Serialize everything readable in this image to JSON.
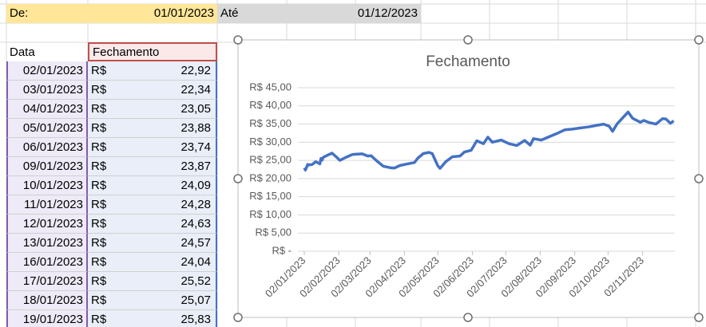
{
  "filter": {
    "from_label": "De:",
    "from_value": "01/01/2023",
    "to_label": "Até",
    "to_value": "01/12/2023"
  },
  "table": {
    "columns": [
      "Data",
      "Fechamento"
    ],
    "rows": [
      [
        "02/01/2023",
        "R$",
        "22,92"
      ],
      [
        "03/01/2023",
        "R$",
        "22,34"
      ],
      [
        "04/01/2023",
        "R$",
        "23,05"
      ],
      [
        "05/01/2023",
        "R$",
        "23,88"
      ],
      [
        "06/01/2023",
        "R$",
        "23,74"
      ],
      [
        "09/01/2023",
        "R$",
        "23,87"
      ],
      [
        "10/01/2023",
        "R$",
        "24,09"
      ],
      [
        "11/01/2023",
        "R$",
        "24,28"
      ],
      [
        "12/01/2023",
        "R$",
        "24,63"
      ],
      [
        "13/01/2023",
        "R$",
        "24,57"
      ],
      [
        "16/01/2023",
        "R$",
        "24,04"
      ],
      [
        "17/01/2023",
        "R$",
        "25,52"
      ],
      [
        "18/01/2023",
        "R$",
        "25,07"
      ],
      [
        "19/01/2023",
        "R$",
        "25,83"
      ]
    ]
  },
  "chart_data": {
    "type": "line",
    "title": "Fechamento",
    "color": "#4472c4",
    "grid": true,
    "x": [
      "02/01/2023",
      "03/01/2023",
      "04/01/2023",
      "05/01/2023",
      "06/01/2023",
      "09/01/2023",
      "10/01/2023",
      "11/01/2023",
      "12/01/2023",
      "13/01/2023",
      "16/01/2023",
      "17/01/2023",
      "18/01/2023",
      "19/01/2023",
      "24/01/2023",
      "27/01/2023",
      "31/01/2023",
      "03/02/2023",
      "08/02/2023",
      "14/02/2023",
      "17/02/2023",
      "23/02/2023",
      "28/02/2023",
      "03/03/2023",
      "08/03/2023",
      "14/03/2023",
      "20/03/2023",
      "24/03/2023",
      "29/03/2023",
      "04/04/2023",
      "11/04/2023",
      "14/04/2023",
      "19/04/2023",
      "24/04/2023",
      "27/04/2023",
      "02/05/2023",
      "04/05/2023",
      "09/05/2023",
      "15/05/2023",
      "22/05/2023",
      "26/05/2023",
      "01/06/2023",
      "06/06/2023",
      "12/06/2023",
      "16/06/2023",
      "20/06/2023",
      "28/06/2023",
      "05/07/2023",
      "12/07/2023",
      "19/07/2023",
      "24/07/2023",
      "27/07/2023",
      "03/08/2023",
      "10/08/2023",
      "17/08/2023",
      "24/08/2023",
      "31/08/2023",
      "06/09/2023",
      "14/09/2023",
      "21/09/2023",
      "28/09/2023",
      "03/10/2023",
      "06/10/2023",
      "10/10/2023",
      "16/10/2023",
      "20/10/2023",
      "24/10/2023",
      "31/10/2023",
      "03/11/2023",
      "08/11/2023",
      "14/11/2023",
      "20/11/2023",
      "23/11/2023",
      "27/11/2023",
      "30/11/2023"
    ],
    "values": [
      22.92,
      22.34,
      23.05,
      23.88,
      23.74,
      23.87,
      24.09,
      24.28,
      24.63,
      24.57,
      24.04,
      25.52,
      25.07,
      25.83,
      26.6,
      27.0,
      25.9,
      25.0,
      25.8,
      26.6,
      26.7,
      26.8,
      26.2,
      26.3,
      24.9,
      23.4,
      23.0,
      22.9,
      23.6,
      24.0,
      24.4,
      25.6,
      26.9,
      27.2,
      26.9,
      23.5,
      22.8,
      24.6,
      26.0,
      26.2,
      27.3,
      27.8,
      30.4,
      29.6,
      31.4,
      30.0,
      30.6,
      29.6,
      29.1,
      30.5,
      29.2,
      31.0,
      30.6,
      31.5,
      32.4,
      33.4,
      33.6,
      33.9,
      34.2,
      34.6,
      35.0,
      34.4,
      33.0,
      35.0,
      37.0,
      38.3,
      36.6,
      35.5,
      36.0,
      35.4,
      35.0,
      36.5,
      36.4,
      35.2,
      35.9
    ],
    "xlim": [
      "02/01/2023",
      "01/12/2023"
    ],
    "xticks": [
      "02/01/2023",
      "02/02/2023",
      "02/03/2023",
      "02/04/2023",
      "02/05/2023",
      "02/06/2023",
      "02/07/2023",
      "02/08/2023",
      "02/09/2023",
      "02/10/2023",
      "02/11/2023"
    ],
    "ylim": [
      0,
      45
    ],
    "yticks": [
      {
        "value": 0,
        "label": "R$ -"
      },
      {
        "value": 5,
        "label": "R$ 5,00"
      },
      {
        "value": 10,
        "label": "R$ 10,00"
      },
      {
        "value": 15,
        "label": "R$ 15,00"
      },
      {
        "value": 20,
        "label": "R$ 20,00"
      },
      {
        "value": 25,
        "label": "R$ 25,00"
      },
      {
        "value": 30,
        "label": "R$ 30,00"
      },
      {
        "value": 35,
        "label": "R$ 35,00"
      },
      {
        "value": 40,
        "label": "R$ 40,00"
      },
      {
        "value": 45,
        "label": "R$ 45,00"
      }
    ]
  }
}
